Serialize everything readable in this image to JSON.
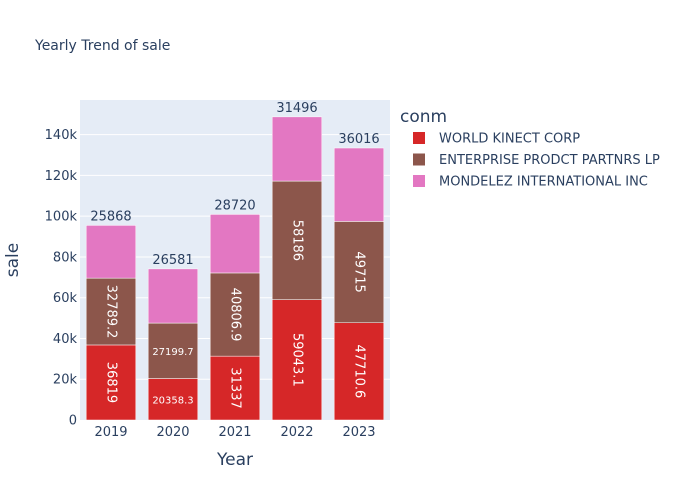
{
  "chart_data": {
    "type": "bar",
    "barmode": "stack",
    "title": "Yearly Trend of sale",
    "xlabel": "Year",
    "ylabel": "sale",
    "ylim": [
      0,
      157000
    ],
    "y_ticks": [
      0,
      20000,
      40000,
      60000,
      80000,
      100000,
      120000,
      140000
    ],
    "y_tick_labels": [
      "0",
      "20k",
      "40k",
      "60k",
      "80k",
      "100k",
      "120k",
      "140k"
    ],
    "categories": [
      "2019",
      "2020",
      "2021",
      "2022",
      "2023"
    ],
    "legend_title": "conm",
    "legend_position": "right",
    "grid": true,
    "series": [
      {
        "name": "WORLD KINECT CORP",
        "color": "#d62728",
        "values": [
          36819,
          20358.3,
          31337,
          59043.1,
          47710.6
        ],
        "labels": [
          "36819",
          "20358.3",
          "31337",
          "59043.1",
          "47710.6"
        ]
      },
      {
        "name": "ENTERPRISE PRODCT PARTNRS LP",
        "color": "#8c564b",
        "values": [
          32789.2,
          27199.7,
          40806.9,
          58186,
          49715
        ],
        "labels": [
          "32789.2",
          "27199.7",
          "40806.9",
          "58186",
          "49715"
        ]
      },
      {
        "name": "MONDELEZ INTERNATIONAL INC",
        "color": "#e377c2",
        "values": [
          25868,
          26581,
          28720,
          31496,
          36016
        ],
        "labels": [
          "25868",
          "26581",
          "28720",
          "31496",
          "36016"
        ]
      }
    ]
  }
}
